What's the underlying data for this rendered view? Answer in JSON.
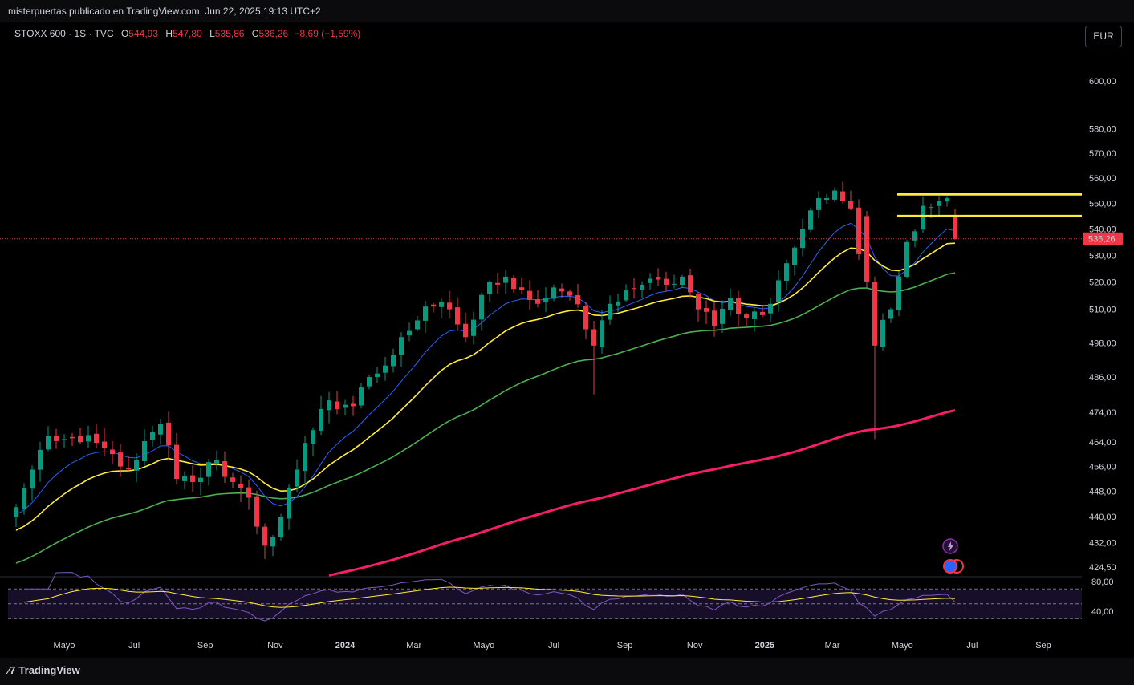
{
  "header": {
    "publisher": "misterpuertas publicado en TradingView.com, Jun 22, 2025 19:13 UTC+2"
  },
  "legend": {
    "symbol": "STOXX 600 · 1S · TVC",
    "open_label": "O",
    "open": "544,93",
    "high_label": "H",
    "high": "547,80",
    "low_label": "L",
    "low": "535,86",
    "close_label": "C",
    "close": "536,26",
    "change": "−8,69 (−1,59%)"
  },
  "currency_button": "EUR",
  "footer": {
    "brand": "TradingView",
    "logo_icon": "tradingview-logo-icon"
  },
  "colors": {
    "up": "#089981",
    "down": "#f23645",
    "ema_fast": "#2962ff",
    "ema_mid": "#ffeb3b",
    "ema_slow": "#4caf50",
    "ema_long": "#f71d6b",
    "resistance": "#ffeb3b"
  },
  "chart_data": {
    "type": "candlestick",
    "title": "",
    "y_axis_ticks": [
      424.5,
      432,
      440,
      448,
      456,
      464,
      474,
      486,
      498,
      510,
      520,
      530,
      540,
      550,
      560,
      570,
      580,
      600
    ],
    "y_axis_tick_labels": [
      "424,50",
      "432,00",
      "440,00",
      "448,00",
      "456,00",
      "464,00",
      "474,00",
      "486,00",
      "498,00",
      "510,00",
      "520,00",
      "530,00",
      "540,00",
      "550,00",
      "560,00",
      "570,00",
      "580,00",
      "600,00"
    ],
    "y_scale": "log",
    "x_axis_labels": [
      "Mayo",
      "Jul",
      "Sep",
      "Nov",
      "2024",
      "Mar",
      "Mayo",
      "Jul",
      "Sep",
      "Nov",
      "2025",
      "Mar",
      "Mayo",
      "Jul",
      "Sep"
    ],
    "x_axis_dates": [
      "2023-05",
      "2023-07",
      "2023-09",
      "2023-11",
      "2024-01",
      "2024-03",
      "2024-05",
      "2024-07",
      "2024-09",
      "2024-11",
      "2025-01",
      "2025-03",
      "2025-05",
      "2025-07",
      "2025-09"
    ],
    "last_price": 536.26,
    "last_price_label": "536,26",
    "resistance_levels": [
      553.5,
      545.0
    ],
    "anchor_closes": [
      [
        "2023-03-20",
        443
      ],
      [
        "2023-03-27",
        449
      ],
      [
        "2023-04-03",
        455
      ],
      [
        "2023-04-17",
        466
      ],
      [
        "2023-05-01",
        465
      ],
      [
        "2023-05-15",
        464
      ],
      [
        "2023-06-05",
        462
      ],
      [
        "2023-06-19",
        456
      ],
      [
        "2023-07-03",
        458
      ],
      [
        "2023-07-24",
        470
      ],
      [
        "2023-08-07",
        452
      ],
      [
        "2023-08-21",
        451
      ],
      [
        "2023-09-11",
        458
      ],
      [
        "2023-09-25",
        451
      ],
      [
        "2023-10-09",
        446
      ],
      [
        "2023-10-23",
        431
      ],
      [
        "2023-11-06",
        440
      ],
      [
        "2023-11-20",
        455
      ],
      [
        "2023-12-04",
        468
      ],
      [
        "2023-12-18",
        478
      ],
      [
        "2024-01-08",
        476
      ],
      [
        "2024-01-22",
        486
      ],
      [
        "2024-02-05",
        490
      ],
      [
        "2024-02-19",
        500
      ],
      [
        "2024-03-04",
        506
      ],
      [
        "2024-03-18",
        511
      ],
      [
        "2024-04-01",
        510
      ],
      [
        "2024-04-15",
        500
      ],
      [
        "2024-05-06",
        520
      ],
      [
        "2024-05-20",
        522
      ],
      [
        "2024-06-03",
        517
      ],
      [
        "2024-06-17",
        512
      ],
      [
        "2024-07-01",
        518
      ],
      [
        "2024-07-15",
        515
      ],
      [
        "2024-08-05",
        497
      ],
      [
        "2024-08-19",
        512
      ],
      [
        "2024-09-02",
        517
      ],
      [
        "2024-09-16",
        519
      ],
      [
        "2024-10-07",
        519
      ],
      [
        "2024-10-21",
        522
      ],
      [
        "2024-11-04",
        510
      ],
      [
        "2024-11-18",
        504
      ],
      [
        "2024-12-02",
        514
      ],
      [
        "2024-12-16",
        507
      ],
      [
        "2025-01-06",
        512
      ],
      [
        "2025-01-20",
        527
      ],
      [
        "2025-02-03",
        540
      ],
      [
        "2025-02-17",
        552
      ],
      [
        "2025-03-03",
        555
      ],
      [
        "2025-03-17",
        548
      ],
      [
        "2025-04-07",
        497
      ],
      [
        "2025-04-21",
        510
      ],
      [
        "2025-05-05",
        535
      ],
      [
        "2025-05-19",
        549
      ],
      [
        "2025-06-02",
        551
      ],
      [
        "2025-06-09",
        552
      ],
      [
        "2025-06-16",
        544.93
      ]
    ],
    "last_candle": {
      "date": "2025-06-16",
      "open": 544.93,
      "high": 547.8,
      "low": 535.86,
      "close": 536.26
    },
    "series": [
      {
        "type": "ema",
        "period": 10
      },
      {
        "type": "ema",
        "period": 20
      },
      {
        "type": "ema",
        "period": 50
      },
      {
        "type": "ema",
        "period": 200
      }
    ],
    "oscillator": {
      "y_tick_labels": [
        "80,00",
        "40,00"
      ],
      "y_ticks": [
        80,
        40
      ],
      "levels": [
        70,
        50,
        30
      ]
    },
    "axis_annotations": [
      {
        "kind": "flash",
        "icon": "lightning-icon"
      },
      {
        "kind": "events",
        "icon": "event-markers-icon"
      }
    ]
  }
}
